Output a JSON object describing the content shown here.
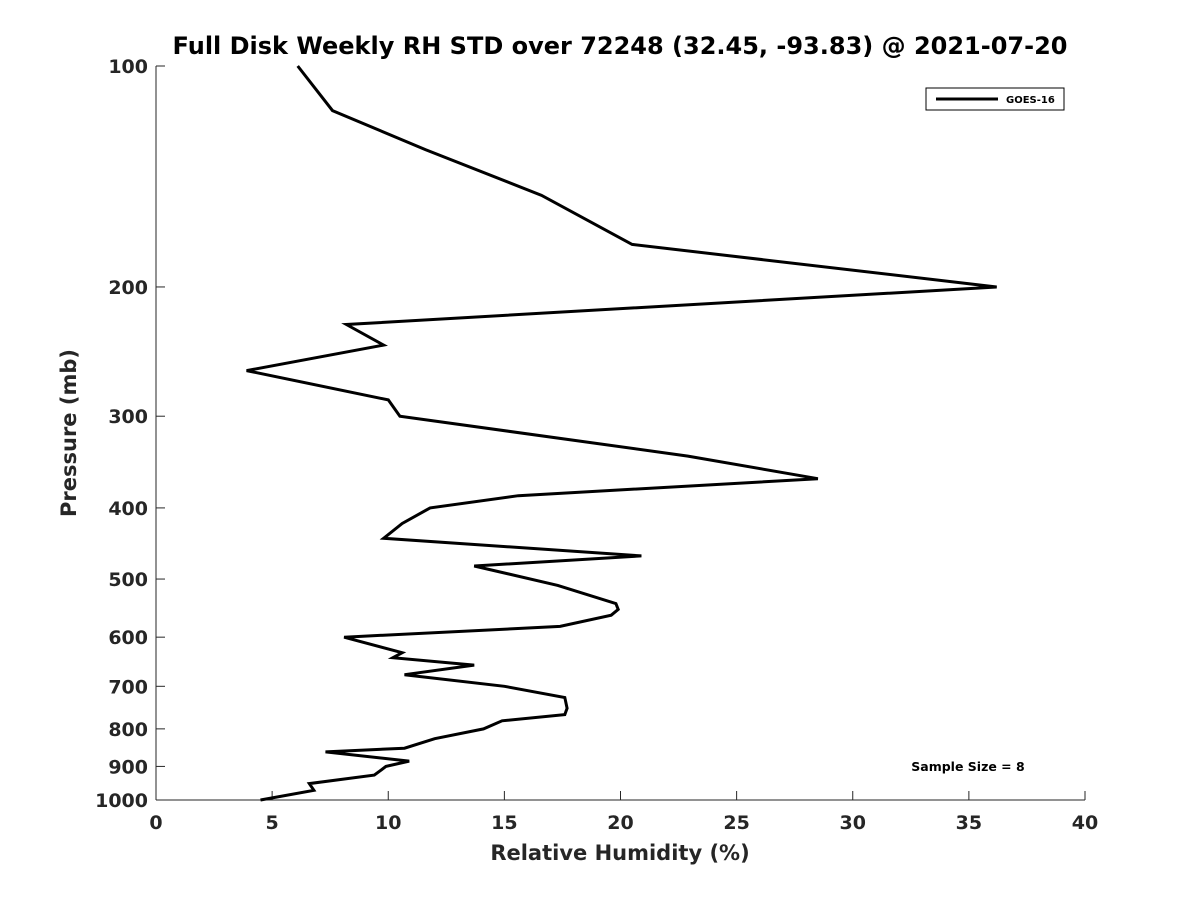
{
  "chart_data": {
    "type": "line",
    "title": "Full Disk Weekly RH STD over 72248 (32.45, -93.83) @ 2021-07-20",
    "xlabel": "Relative Humidity (%)",
    "ylabel": "Pressure (mb)",
    "xlim": [
      0,
      40
    ],
    "ylim": [
      100,
      1000
    ],
    "y_scale": "log",
    "y_reversed": true,
    "x_ticks": [
      0,
      5,
      10,
      15,
      20,
      25,
      30,
      35,
      40
    ],
    "y_ticks": [
      100,
      200,
      300,
      400,
      500,
      600,
      700,
      800,
      900,
      1000
    ],
    "legend_position": "top-right",
    "annotation": "Sample Size = 8",
    "series": [
      {
        "name": "GOES-16",
        "color": "#000000",
        "points": [
          [
            6.1,
            100
          ],
          [
            7.6,
            115
          ],
          [
            11.6,
            130
          ],
          [
            16.6,
            150
          ],
          [
            20.5,
            175
          ],
          [
            36.2,
            200
          ],
          [
            8.2,
            225
          ],
          [
            9.8,
            240
          ],
          [
            3.9,
            260
          ],
          [
            10.0,
            285
          ],
          [
            10.5,
            300
          ],
          [
            22.9,
            340
          ],
          [
            28.5,
            365
          ],
          [
            15.6,
            385
          ],
          [
            11.8,
            400
          ],
          [
            10.6,
            420
          ],
          [
            9.8,
            440
          ],
          [
            20.9,
            465
          ],
          [
            13.7,
            480
          ],
          [
            17.3,
            510
          ],
          [
            19.8,
            540
          ],
          [
            19.9,
            550
          ],
          [
            19.6,
            560
          ],
          [
            17.4,
            580
          ],
          [
            8.1,
            600
          ],
          [
            10.6,
            630
          ],
          [
            10.2,
            640
          ],
          [
            13.7,
            655
          ],
          [
            10.7,
            675
          ],
          [
            15.0,
            700
          ],
          [
            17.6,
            725
          ],
          [
            17.7,
            750
          ],
          [
            17.6,
            765
          ],
          [
            14.9,
            780
          ],
          [
            14.1,
            800
          ],
          [
            12.0,
            825
          ],
          [
            10.7,
            850
          ],
          [
            7.3,
            860
          ],
          [
            10.9,
            885
          ],
          [
            9.9,
            900
          ],
          [
            9.7,
            910
          ],
          [
            9.4,
            925
          ],
          [
            6.6,
            950
          ],
          [
            6.8,
            970
          ],
          [
            4.5,
            1000
          ]
        ]
      }
    ]
  }
}
